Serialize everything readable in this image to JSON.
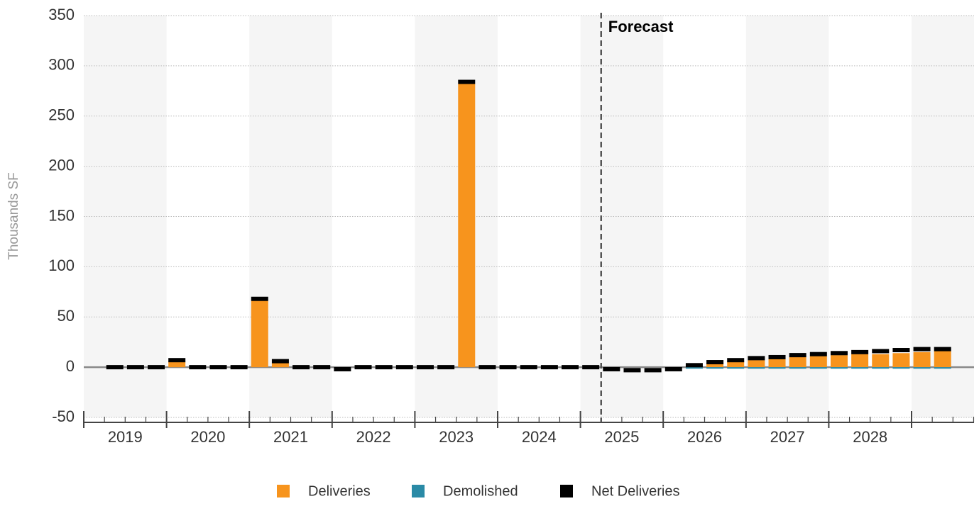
{
  "chart_data": {
    "type": "bar",
    "y_axis_label": "Thousands SF",
    "annotation": "Forecast",
    "forecast_from": 25,
    "categories": [
      null,
      null,
      null,
      null,
      null,
      null,
      null,
      null,
      null,
      null,
      null,
      null,
      null,
      null,
      null,
      null,
      null,
      null,
      null,
      null,
      null,
      null,
      null,
      null,
      null,
      null,
      null,
      null,
      null,
      null,
      null,
      null,
      null,
      null,
      null,
      null,
      null,
      null,
      null,
      null,
      null,
      null,
      null
    ],
    "year_labels": [
      "2019",
      "2020",
      "2021",
      "2022",
      "2023",
      "2024",
      "2025",
      "2026",
      "2027",
      "2028"
    ],
    "series": [
      {
        "name": "Deliveries",
        "color": "#f7941d",
        "values": [
          null,
          0,
          0,
          0,
          6,
          0,
          0,
          0,
          66,
          4,
          0,
          0,
          0,
          0,
          0,
          0,
          0,
          0,
          282,
          0,
          0,
          0,
          0,
          0,
          0,
          0,
          0,
          0,
          0,
          1,
          4,
          6,
          7,
          9,
          10,
          11,
          12,
          13,
          13,
          14,
          15,
          16,
          null
        ]
      },
      {
        "name": "Demolished",
        "color": "#2a8aa6",
        "values": [
          null,
          0,
          0,
          0,
          0,
          0,
          0,
          0,
          0,
          0,
          0,
          0,
          0,
          0,
          0,
          0,
          0,
          0,
          0,
          0,
          0,
          0,
          0,
          0,
          0,
          0,
          0,
          0,
          0,
          -1.5,
          -1.5,
          -1.5,
          -1.5,
          -1.5,
          -1.5,
          -1.5,
          -1.5,
          -1.5,
          -1.5,
          -1.5,
          -1.5,
          -1.5,
          null
        ]
      },
      {
        "name": "Net Deliveries",
        "color": "#000000",
        "values": [
          null,
          0,
          0,
          0,
          7,
          0,
          0,
          0,
          68,
          6,
          0,
          0,
          -2,
          0,
          0,
          0,
          0,
          0,
          284,
          0,
          0,
          0,
          0,
          0,
          0,
          -2,
          -3,
          -3,
          -2,
          2,
          5,
          7,
          9,
          10,
          12,
          13,
          14,
          15,
          16,
          17,
          18,
          18,
          null
        ]
      }
    ],
    "ylim": [
      -50,
      350
    ],
    "yticks": [
      -50,
      0,
      50,
      100,
      150,
      200,
      250,
      300,
      350
    ],
    "grid": true
  }
}
